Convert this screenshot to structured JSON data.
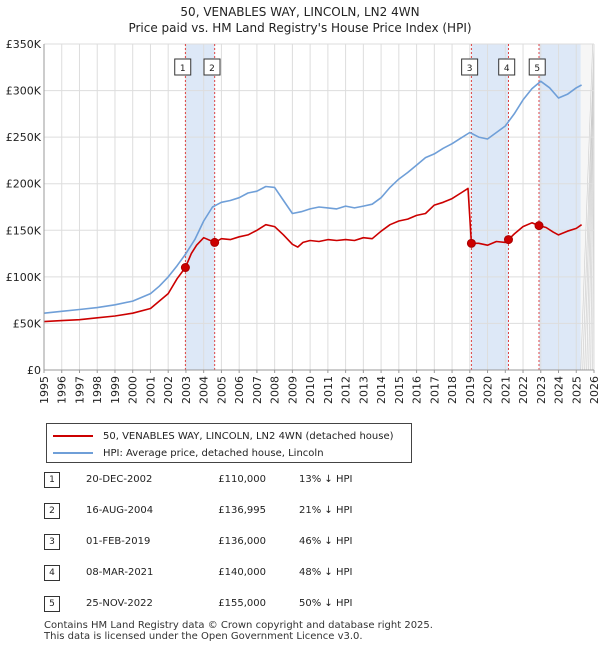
{
  "chart_data": {
    "type": "line",
    "title": "50, VENABLES WAY, LINCOLN, LN2 4WN",
    "subtitle": "Price paid vs. HM Land Registry's House Price Index (HPI)",
    "xlabel": "",
    "ylabel": "",
    "xlim": [
      1995,
      2026
    ],
    "ylim": [
      0,
      350000
    ],
    "y_ticks": [
      {
        "value": 0,
        "label": "£0"
      },
      {
        "value": 50000,
        "label": "£50K"
      },
      {
        "value": 100000,
        "label": "£100K"
      },
      {
        "value": 150000,
        "label": "£150K"
      },
      {
        "value": 200000,
        "label": "£200K"
      },
      {
        "value": 250000,
        "label": "£250K"
      },
      {
        "value": 300000,
        "label": "£300K"
      },
      {
        "value": 350000,
        "label": "£350K"
      }
    ],
    "x_ticks": [
      "1995",
      "1996",
      "1997",
      "1998",
      "1999",
      "2000",
      "2001",
      "2002",
      "2003",
      "2004",
      "2005",
      "2006",
      "2007",
      "2008",
      "2009",
      "2010",
      "2011",
      "2012",
      "2013",
      "2014",
      "2015",
      "2016",
      "2017",
      "2018",
      "2019",
      "2020",
      "2021",
      "2022",
      "2023",
      "2024",
      "2025",
      "2026"
    ],
    "grid": true,
    "forecast_start": 2025.25,
    "colors": {
      "property": "#cc0000",
      "hpi": "#6f9fd8",
      "shade": "#dde8f7",
      "grid": "#dddddd"
    },
    "series": [
      {
        "name": "50, VENABLES WAY, LINCOLN, LN2 4WN (detached house)",
        "x": [
          1995.0,
          1996.0,
          1997.0,
          1998.0,
          1999.0,
          2000.0,
          2001.0,
          2002.0,
          2002.5,
          2002.97,
          2003.3,
          2003.6,
          2004.0,
          2004.62,
          2005.0,
          2005.5,
          2006.0,
          2006.5,
          2007.0,
          2007.5,
          2008.0,
          2008.5,
          2009.0,
          2009.3,
          2009.6,
          2010.0,
          2010.5,
          2011.0,
          2011.5,
          2012.0,
          2012.5,
          2013.0,
          2013.5,
          2014.0,
          2014.5,
          2015.0,
          2015.5,
          2016.0,
          2016.5,
          2017.0,
          2017.5,
          2018.0,
          2018.5,
          2018.9,
          2019.09,
          2019.5,
          2020.0,
          2020.5,
          2021.0,
          2021.18,
          2021.5,
          2022.0,
          2022.5,
          2022.9,
          2023.3,
          2023.7,
          2024.0,
          2024.5,
          2025.0,
          2025.3
        ],
        "values": [
          52000,
          53000,
          54000,
          56000,
          58000,
          61000,
          66000,
          82000,
          98000,
          110000,
          125000,
          134000,
          142000,
          136995,
          141000,
          140000,
          143000,
          145000,
          150000,
          156000,
          154000,
          145000,
          135000,
          132000,
          137000,
          139000,
          138000,
          140000,
          139000,
          140000,
          139000,
          142000,
          141000,
          149000,
          156000,
          160000,
          162000,
          166000,
          168000,
          177000,
          180000,
          184000,
          190000,
          195000,
          136000,
          136000,
          134000,
          138000,
          137000,
          140000,
          146000,
          154000,
          158000,
          155000,
          153000,
          148000,
          145000,
          149000,
          152000,
          156000
        ]
      },
      {
        "name": "HPI: Average price, detached house, Lincoln",
        "x": [
          1995.0,
          1996.0,
          1997.0,
          1998.0,
          1999.0,
          2000.0,
          2001.0,
          2001.5,
          2002.0,
          2002.5,
          2003.0,
          2003.5,
          2004.0,
          2004.5,
          2005.0,
          2005.5,
          2006.0,
          2006.5,
          2007.0,
          2007.5,
          2008.0,
          2008.5,
          2009.0,
          2009.5,
          2010.0,
          2010.5,
          2011.0,
          2011.5,
          2012.0,
          2012.5,
          2013.0,
          2013.5,
          2014.0,
          2014.5,
          2015.0,
          2015.5,
          2016.0,
          2016.5,
          2017.0,
          2017.5,
          2018.0,
          2018.5,
          2019.0,
          2019.5,
          2020.0,
          2020.5,
          2021.0,
          2021.5,
          2022.0,
          2022.5,
          2023.0,
          2023.5,
          2024.0,
          2024.5,
          2025.0,
          2025.3
        ],
        "values": [
          61000,
          63000,
          65000,
          67000,
          70000,
          74000,
          82000,
          90000,
          100000,
          112000,
          125000,
          140000,
          160000,
          175000,
          180000,
          182000,
          185000,
          190000,
          192000,
          197000,
          196000,
          182000,
          168000,
          170000,
          173000,
          175000,
          174000,
          173000,
          176000,
          174000,
          176000,
          178000,
          185000,
          196000,
          205000,
          212000,
          220000,
          228000,
          232000,
          238000,
          243000,
          249000,
          255000,
          250000,
          248000,
          255000,
          262000,
          275000,
          290000,
          302000,
          310000,
          303000,
          292000,
          296000,
          303000,
          306000
        ]
      }
    ],
    "sales": [
      {
        "label": "1",
        "x": 2002.97,
        "value": 110000
      },
      {
        "label": "2",
        "x": 2004.62,
        "value": 136995
      },
      {
        "label": "3",
        "x": 2019.09,
        "value": 136000
      },
      {
        "label": "4",
        "x": 2021.18,
        "value": 140000
      },
      {
        "label": "5",
        "x": 2022.9,
        "value": 155000
      }
    ],
    "shaded_ranges": [
      [
        2002.97,
        2004.62
      ],
      [
        2019.09,
        2021.18
      ],
      [
        2022.9,
        2025.25
      ]
    ]
  },
  "legend": {
    "property_label": "50, VENABLES WAY, LINCOLN, LN2 4WN (detached house)",
    "hpi_label": "HPI: Average price, detached house, Lincoln"
  },
  "sales_table": [
    {
      "num": "1",
      "date": "20-DEC-2002",
      "price": "£110,000",
      "hpi": "13% ↓ HPI"
    },
    {
      "num": "2",
      "date": "16-AUG-2004",
      "price": "£136,995",
      "hpi": "21% ↓ HPI"
    },
    {
      "num": "3",
      "date": "01-FEB-2019",
      "price": "£136,000",
      "hpi": "46% ↓ HPI"
    },
    {
      "num": "4",
      "date": "08-MAR-2021",
      "price": "£140,000",
      "hpi": "48% ↓ HPI"
    },
    {
      "num": "5",
      "date": "25-NOV-2022",
      "price": "£155,000",
      "hpi": "50% ↓ HPI"
    }
  ],
  "footer": {
    "line1": "Contains HM Land Registry data © Crown copyright and database right 2025.",
    "line2": "This data is licensed under the Open Government Licence v3.0."
  }
}
